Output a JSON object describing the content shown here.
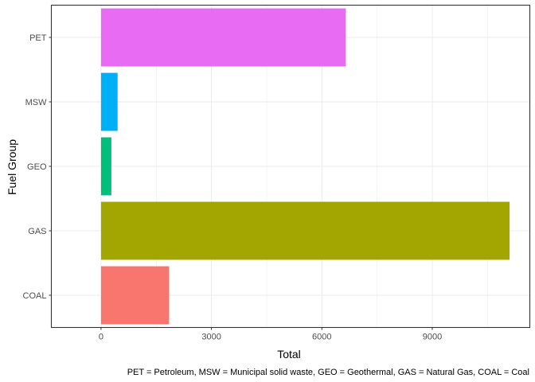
{
  "chart_data": {
    "type": "bar",
    "orientation": "horizontal",
    "categories": [
      "COAL",
      "GAS",
      "GEO",
      "MSW",
      "PET"
    ],
    "values": [
      1850,
      11100,
      280,
      450,
      6650
    ],
    "colors": [
      "#F8766D",
      "#A3A500",
      "#00BF7D",
      "#00B0F6",
      "#E76BF3"
    ],
    "xlabel": "Total",
    "ylabel": "Fuel Group",
    "xticks": [
      0,
      3000,
      6000,
      9000
    ],
    "xlim": [
      -1350,
      11650
    ],
    "grid": true,
    "legend": "none",
    "caption": "PET = Petroleum, MSW = Municipal solid waste, GEO = Geothermal, GAS = Natural Gas, COAL = Coal"
  }
}
